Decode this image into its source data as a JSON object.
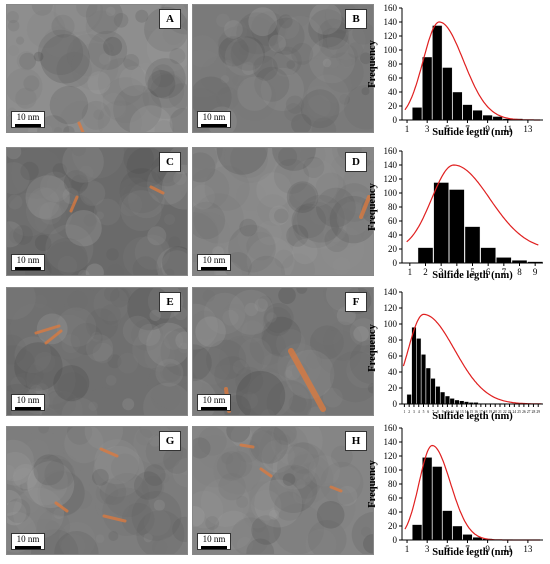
{
  "panels": [
    {
      "letter": "A",
      "scale_label": "10 nm",
      "tone": "#8e8e8e"
    },
    {
      "letter": "B",
      "scale_label": "10 nm",
      "tone": "#7a7a7a"
    },
    {
      "letter": "C",
      "scale_label": "10 nm",
      "tone": "#6a6a6a"
    },
    {
      "letter": "D",
      "scale_label": "10 nm",
      "tone": "#8a8a8a"
    },
    {
      "letter": "E",
      "scale_label": "10 nm",
      "tone": "#6f6f6f"
    },
    {
      "letter": "F",
      "scale_label": "10 nm",
      "tone": "#767676"
    },
    {
      "letter": "G",
      "scale_label": "10 nm",
      "tone": "#7d7d7d"
    },
    {
      "letter": "H",
      "scale_label": "10 nm",
      "tone": "#858585"
    }
  ],
  "colors": {
    "bars": "#000000",
    "fit_curve": "#e02020",
    "sulfide_marker": "#e07a3c"
  },
  "chart_data": [
    {
      "type": "bar",
      "xlabel": "Sulfide legth (nm)",
      "ylabel": "Frequency",
      "ylim": [
        0,
        160
      ],
      "yticks": [
        0,
        20,
        40,
        60,
        80,
        100,
        120,
        140,
        160
      ],
      "xlim": [
        0.5,
        14.5
      ],
      "xticks": [
        1,
        3,
        5,
        7,
        9,
        11,
        13
      ],
      "x": [
        2,
        3,
        4,
        5,
        6,
        7,
        8,
        9,
        10,
        11,
        12
      ],
      "values": [
        18,
        90,
        135,
        75,
        40,
        22,
        14,
        7,
        5,
        2,
        2
      ],
      "fit": {
        "peak_x": 4.2,
        "peak_y": 140,
        "sigma_left": 1.6,
        "sigma_right": 2.4,
        "baseline": 0
      }
    },
    {
      "type": "bar",
      "xlabel": "Sulfide legth (nm)",
      "ylabel": "Frequency",
      "ylim": [
        0,
        160
      ],
      "yticks": [
        0,
        20,
        40,
        60,
        80,
        100,
        120,
        140,
        160
      ],
      "xlim": [
        0.5,
        9.5
      ],
      "xticks": [
        1,
        2,
        3,
        4,
        5,
        6,
        7,
        8,
        9
      ],
      "x": [
        2,
        3,
        4,
        5,
        6,
        7,
        8,
        9
      ],
      "values": [
        22,
        115,
        105,
        52,
        22,
        8,
        4,
        2
      ],
      "fit": {
        "peak_x": 3.8,
        "peak_y": 140,
        "sigma_left": 1.4,
        "sigma_right": 2.3,
        "baseline": 18
      }
    },
    {
      "type": "bar",
      "xlabel": "Sulfide legth (nm)",
      "ylabel": "Frequency",
      "ylim": [
        0,
        140
      ],
      "yticks": [
        0,
        20,
        40,
        60,
        80,
        100,
        120,
        140
      ],
      "xlim": [
        0.5,
        30
      ],
      "xticks": [
        1,
        2,
        3,
        4,
        5,
        6,
        7,
        8,
        9,
        10,
        11,
        12,
        13,
        14,
        15,
        16,
        17,
        18,
        19,
        20,
        21,
        22,
        23,
        24,
        25,
        26,
        27,
        28,
        29
      ],
      "x": [
        2,
        3,
        4,
        5,
        6,
        7,
        8,
        9,
        10,
        11,
        12,
        13,
        14,
        15,
        16,
        17,
        18,
        19,
        20,
        21,
        22
      ],
      "values": [
        12,
        96,
        82,
        62,
        45,
        32,
        22,
        15,
        10,
        7,
        5,
        4,
        3,
        2,
        2,
        1,
        1,
        1,
        1,
        1,
        1
      ],
      "fit": {
        "peak_x": 5,
        "peak_y": 112,
        "sigma_left": 3.2,
        "sigma_right": 6.5,
        "baseline": 0
      }
    },
    {
      "type": "bar",
      "xlabel": "Sulfide legth (nm)",
      "ylabel": "Frequency",
      "ylim": [
        0,
        160
      ],
      "yticks": [
        0,
        20,
        40,
        60,
        80,
        100,
        120,
        140,
        160
      ],
      "xlim": [
        0.5,
        14.5
      ],
      "xticks": [
        1,
        3,
        5,
        7,
        9,
        11,
        13
      ],
      "x": [
        2,
        3,
        4,
        5,
        6,
        7,
        8,
        9,
        10,
        11
      ],
      "values": [
        22,
        118,
        105,
        42,
        20,
        8,
        4,
        2,
        1,
        1
      ],
      "fit": {
        "peak_x": 3.5,
        "peak_y": 135,
        "sigma_left": 1.3,
        "sigma_right": 1.8,
        "baseline": 0
      }
    }
  ]
}
